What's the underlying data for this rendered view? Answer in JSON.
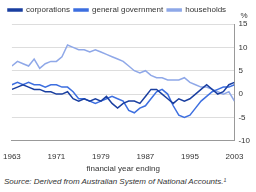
{
  "chart_data": {
    "type": "line",
    "x_label": "financial year ending",
    "y_label": "%",
    "source": "Source: Derived from Australian System of National Accounts.¹",
    "x": [
      1963,
      1964,
      1965,
      1966,
      1967,
      1968,
      1969,
      1970,
      1971,
      1972,
      1973,
      1974,
      1975,
      1976,
      1977,
      1978,
      1979,
      1980,
      1981,
      1982,
      1983,
      1984,
      1985,
      1986,
      1987,
      1988,
      1989,
      1990,
      1991,
      1992,
      1993,
      1994,
      1995,
      1996,
      1997,
      1998,
      1999,
      2000,
      2001,
      2002,
      2003
    ],
    "series": [
      {
        "name": "corporations",
        "color": "#1a3fa0",
        "values": [
          1,
          1.5,
          2,
          1.5,
          1,
          1,
          0.5,
          0.5,
          0,
          0,
          0.5,
          -1,
          -1.5,
          -1,
          -1.5,
          -1,
          -1.5,
          -0.5,
          -2,
          -3,
          -2,
          -1.5,
          -1.5,
          -2,
          -0.5,
          1,
          1,
          0,
          -1,
          -2,
          -1,
          -1.5,
          -1,
          0,
          1,
          2,
          1,
          0,
          0.5,
          2,
          2.5
        ]
      },
      {
        "name": "general government",
        "color": "#3d6fe0",
        "values": [
          2,
          2.5,
          2,
          2.5,
          2,
          2,
          1.5,
          2,
          2,
          1.5,
          1.5,
          0.5,
          -1,
          -1,
          -1.5,
          -2,
          -1.5,
          -1,
          -0.5,
          -1,
          -1.5,
          -3.5,
          -4,
          -3,
          -2.5,
          -1,
          0.5,
          1,
          0,
          -2.5,
          -4.5,
          -5,
          -4.5,
          -3,
          -1.5,
          -0.5,
          0.5,
          1,
          1.5,
          1.5,
          2
        ]
      },
      {
        "name": "households",
        "color": "#8fa8e8",
        "values": [
          6,
          7,
          6.5,
          6,
          7.5,
          5.5,
          6.5,
          7,
          7,
          8,
          10.5,
          10,
          9.5,
          9.5,
          9,
          9.5,
          9,
          8.5,
          8,
          7.5,
          7,
          6,
          5,
          4.5,
          5,
          4,
          3.5,
          3.5,
          3,
          3,
          3,
          3.5,
          2.5,
          2,
          1.5,
          1.5,
          1,
          0.5,
          0,
          0.5,
          -1.5
        ]
      }
    ],
    "xlim": [
      1963,
      2003
    ],
    "xticks": [
      1963,
      1971,
      1979,
      1987,
      1995,
      2003
    ],
    "ylim": [
      -10,
      15
    ],
    "yticks": [
      -10,
      -5,
      0,
      5,
      10,
      15
    ],
    "grid": true,
    "legend": "top-left"
  }
}
